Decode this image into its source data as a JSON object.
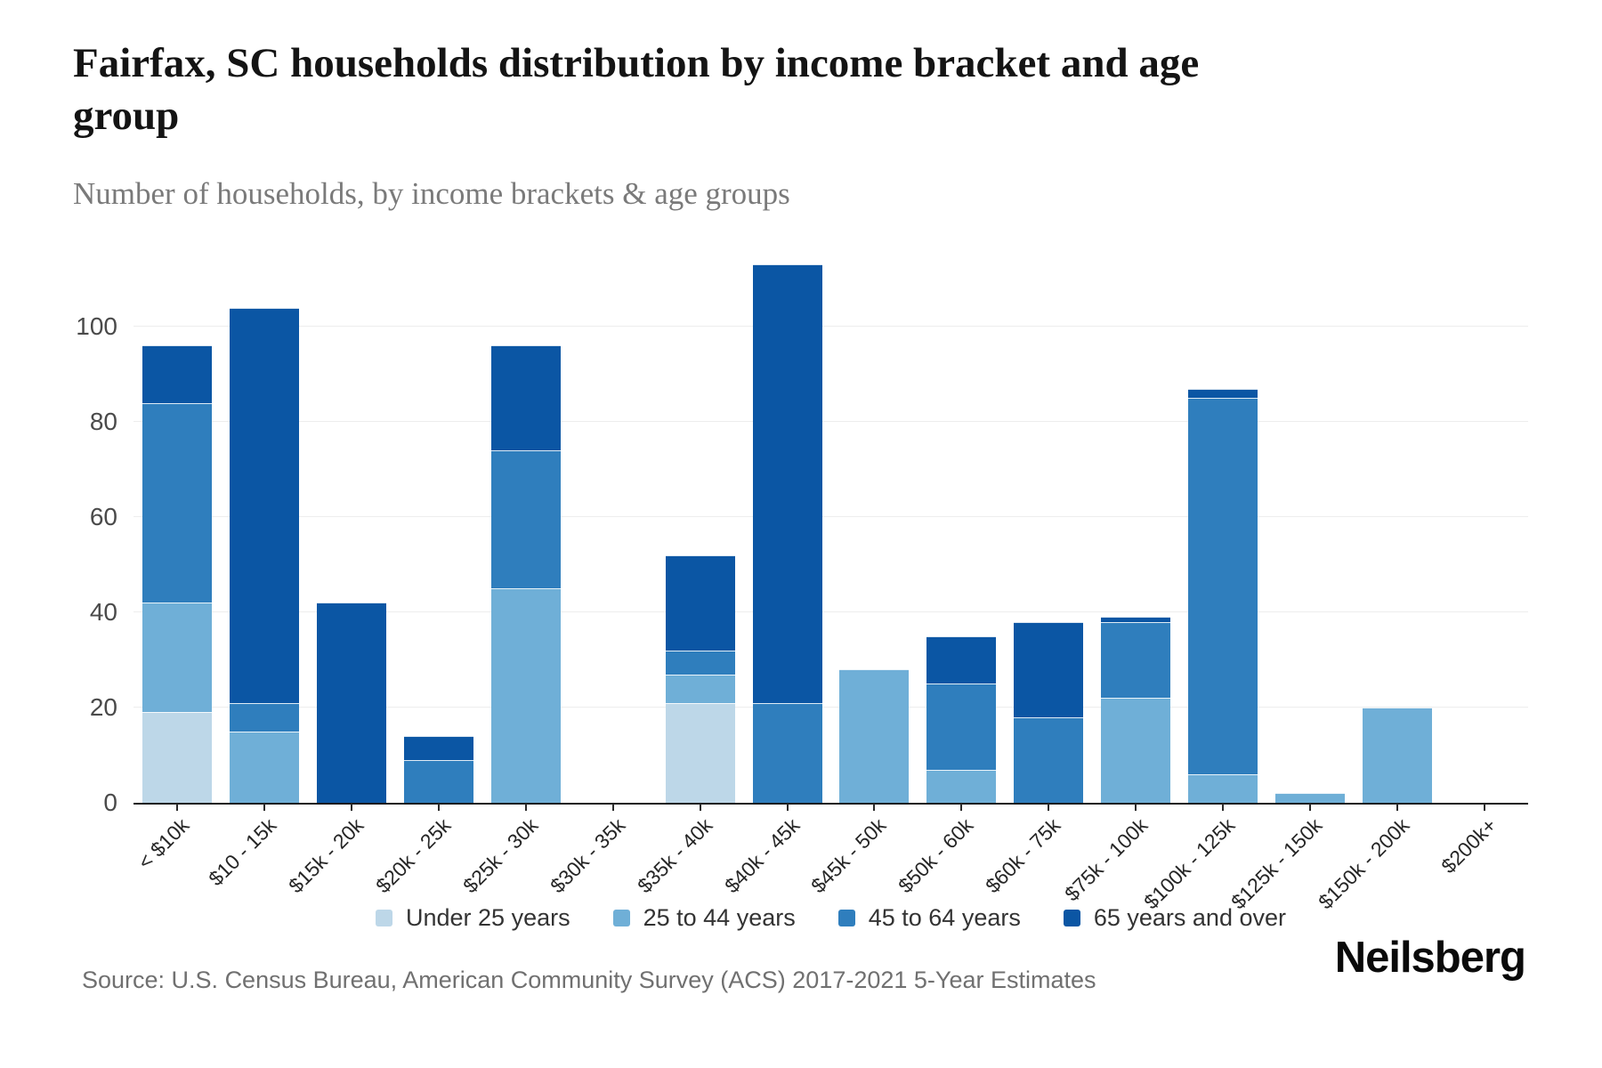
{
  "chart_data": {
    "type": "bar",
    "stacked": true,
    "title": "Fairfax, SC households distribution by income bracket and age group",
    "subtitle": "Number of households, by income brackets & age groups",
    "xlabel": "",
    "ylabel": "",
    "grid": true,
    "legend_position": "bottom",
    "yticks": [
      0,
      20,
      40,
      60,
      80,
      100
    ],
    "ylim": [
      0,
      119.6
    ],
    "axis_color": "#1a1a1a",
    "gridline_color": "#ededed",
    "categories": [
      "< $10k",
      "$10 - 15k",
      "$15k - 20k",
      "$20k - 25k",
      "$25k - 30k",
      "$30k - 35k",
      "$35k - 40k",
      "$40k - 45k",
      "$45k - 50k",
      "$50k - 60k",
      "$60k - 75k",
      "$75k - 100k",
      "$100k - 125k",
      "$125k - 150k",
      "$150k - 200k",
      "$200k+"
    ],
    "series": [
      {
        "name": "Under 25 years",
        "color": "#bdd7e8",
        "values": [
          19,
          0,
          0,
          0,
          0,
          0,
          21,
          0,
          0,
          0,
          0,
          0,
          0,
          0,
          0,
          0
        ]
      },
      {
        "name": "25 to 44 years",
        "color": "#6fafd7",
        "values": [
          23,
          15,
          0,
          0,
          45,
          0,
          6,
          0,
          28,
          7,
          0,
          22,
          6,
          2,
          20,
          0
        ]
      },
      {
        "name": "45 to 64 years",
        "color": "#2f7ebd",
        "values": [
          42,
          6,
          0,
          9,
          29,
          0,
          5,
          21,
          0,
          18,
          18,
          16,
          79,
          0,
          0,
          0
        ]
      },
      {
        "name": "65 years and over",
        "color": "#0b56a4",
        "values": [
          12,
          83,
          42,
          5,
          22,
          0,
          20,
          92,
          0,
          10,
          20,
          1,
          2,
          0,
          0,
          0
        ]
      }
    ],
    "totals": [
      96,
      104,
      42,
      14,
      96,
      0,
      52,
      113,
      28,
      35,
      38,
      39,
      87,
      2,
      20,
      0
    ]
  },
  "footer": {
    "source": "Source: U.S. Census Bureau, American Community Survey (ACS) 2017-2021 5-Year Estimates",
    "brand": "Neilsberg"
  }
}
